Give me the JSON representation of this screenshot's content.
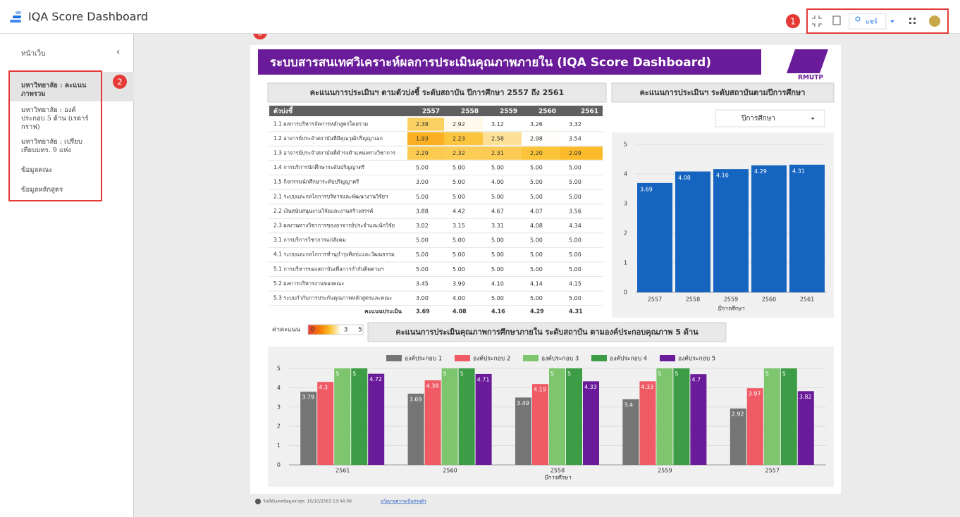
{
  "header": {
    "title": "IQA Score Dashboard",
    "share": "แชร์"
  },
  "annotations": [
    "1",
    "2",
    "3"
  ],
  "sidebar": {
    "heading": "หน้าเว็บ",
    "items": [
      "มหาวิทยาลัย : คะแนนภาพรวม",
      "มหาวิทยาลัย : องค์ประกอบ 5 ด้าน (เรดาร์กราฟ)",
      "มหาวิทยาลัย : เปรียบเทียบมทร. 9 แห่ง",
      "ข้อมูลคณะ",
      "ข้อมูลหลักสูตร"
    ]
  },
  "report": {
    "title": "ระบบสารสนเทศวิเคราะห์ผลการประเมินคุณภาพภายใน (IQA Score Dashboard)",
    "logo": "RMUTP",
    "table": {
      "title": "คะแนนการประเมินฯ ตามตัวบ่งชี้ ระดับสถาบัน ปีการศึกษา 2557 ถึง 2561",
      "columns": [
        "ตัวบ่งชี้",
        "2557",
        "2558",
        "2559",
        "2560",
        "2561"
      ],
      "rows": [
        [
          "1.1 ผลการบริหารจัดการหลักสูตรโดยรวม",
          "2.38",
          "2.92",
          "3.12",
          "3.26",
          "3.32"
        ],
        [
          "1.2 อาจารย์ประจำสถาบันที่มีคุณวุฒิปริญญาเอก",
          "1.93",
          "2.23",
          "2.58",
          "2.98",
          "3.54"
        ],
        [
          "1.3 อาจารย์ประจำสถาบันที่ดำรงตำแหน่งทางวิชาการ",
          "2.29",
          "2.32",
          "2.31",
          "2.20",
          "2.09"
        ],
        [
          "1.4 การบริการนักศึกษาระดับปริญญาตรี",
          "5.00",
          "5.00",
          "5.00",
          "5.00",
          "5.00"
        ],
        [
          "1.5 กิจกรรมนักศึกษาระดับปริญญาตรี",
          "3.00",
          "5.00",
          "4.00",
          "5.00",
          "5.00"
        ],
        [
          "2.1 ระบบและกลไกการบริหารและพัฒนางานวิจัยฯ",
          "5.00",
          "5.00",
          "5.00",
          "5.00",
          "5.00"
        ],
        [
          "2.2 เงินสนับสนุนงานวิจัยและงานสร้างสรรค์",
          "3.88",
          "4.42",
          "4.67",
          "4.07",
          "3.56"
        ],
        [
          "2.3 ผลงานทางวิชาการของอาจารย์ประจำและนักวิจัย",
          "3.02",
          "3.15",
          "3.31",
          "4.08",
          "4.34"
        ],
        [
          "3.1 การบริการวิชาการแก่สังคม",
          "5.00",
          "5.00",
          "5.00",
          "5.00",
          "5.00"
        ],
        [
          "4.1 ระบบและกลไกการทำนุบำรุงศิลปะและวัฒนธรรม",
          "5.00",
          "5.00",
          "5.00",
          "5.00",
          "5.00"
        ],
        [
          "5.1 การบริหารของสถาบันเพื่อการกำกับติดตามฯ",
          "5.00",
          "5.00",
          "5.00",
          "5.00",
          "5.00"
        ],
        [
          "5.2 ผลการบริหารงานของคณะ",
          "3.45",
          "3.99",
          "4.10",
          "4.14",
          "4.15"
        ],
        [
          "5.3 ระบบกำกับการประกันคุณภาพหลักสูตรและคณะ",
          "3.00",
          "4.00",
          "5.00",
          "5.00",
          "5.00"
        ]
      ],
      "total": [
        "คะแนนประเมิน",
        "3.69",
        "4.08",
        "4.16",
        "4.29",
        "4.31"
      ]
    },
    "heat_legend": {
      "label": "ค่าคะแนน",
      "ticks": [
        0,
        3,
        5
      ]
    },
    "bar_chart": {
      "type": "bar",
      "title": "คะแนนการประเมินฯ ระดับสถาบันตามปีการศึกษา",
      "dropdown": "ปีการศึกษา",
      "x_label": "ปีการศึกษา",
      "categories": [
        "2557",
        "2558",
        "2559",
        "2560",
        "2561"
      ],
      "values": [
        3.69,
        4.08,
        4.16,
        4.29,
        4.31
      ],
      "color": "#1565c0",
      "ylim": [
        0,
        5.4
      ],
      "yticks": [
        0,
        1,
        2,
        3,
        4,
        5
      ],
      "grid": true
    },
    "grouped_chart": {
      "type": "grouped_bar",
      "title": "คะแนนการประเมินคุณภาพการศึกษาภายใน ระดับสถาบัน ตามองค์ประกอบคุณภาพ 5 ด้าน",
      "x_label": "ปีการศึกษา",
      "categories": [
        "2561",
        "2560",
        "2558",
        "2559",
        "2557"
      ],
      "series": [
        {
          "name": "องค์ประกอบ 1",
          "color": "#757575",
          "values": [
            3.79,
            3.69,
            3.49,
            3.4,
            2.92
          ]
        },
        {
          "name": "องค์ประกอบ 2",
          "color": "#ef5a64",
          "values": [
            4.3,
            4.38,
            4.19,
            4.33,
            3.97
          ]
        },
        {
          "name": "องค์ประกอบ 3",
          "color": "#7dc66d",
          "values": [
            5,
            5,
            5,
            5,
            5
          ]
        },
        {
          "name": "องค์ประกอบ 4",
          "color": "#3d9d46",
          "values": [
            5,
            5,
            5,
            5,
            5
          ]
        },
        {
          "name": "องค์ประกอบ 5",
          "color": "#6a1b9a",
          "values": [
            4.72,
            4.71,
            4.33,
            4.7,
            3.82
          ]
        }
      ],
      "ylim": [
        0,
        5.4
      ],
      "yticks": [
        0,
        1,
        2,
        3,
        4,
        5
      ],
      "grid": true
    },
    "footer": {
      "updated": "วันที่อัปเดตข้อมูลล่าสุด: 10/10/2563 13:44:09",
      "privacy": "นโยบายความเป็นส่วนตัว"
    }
  }
}
